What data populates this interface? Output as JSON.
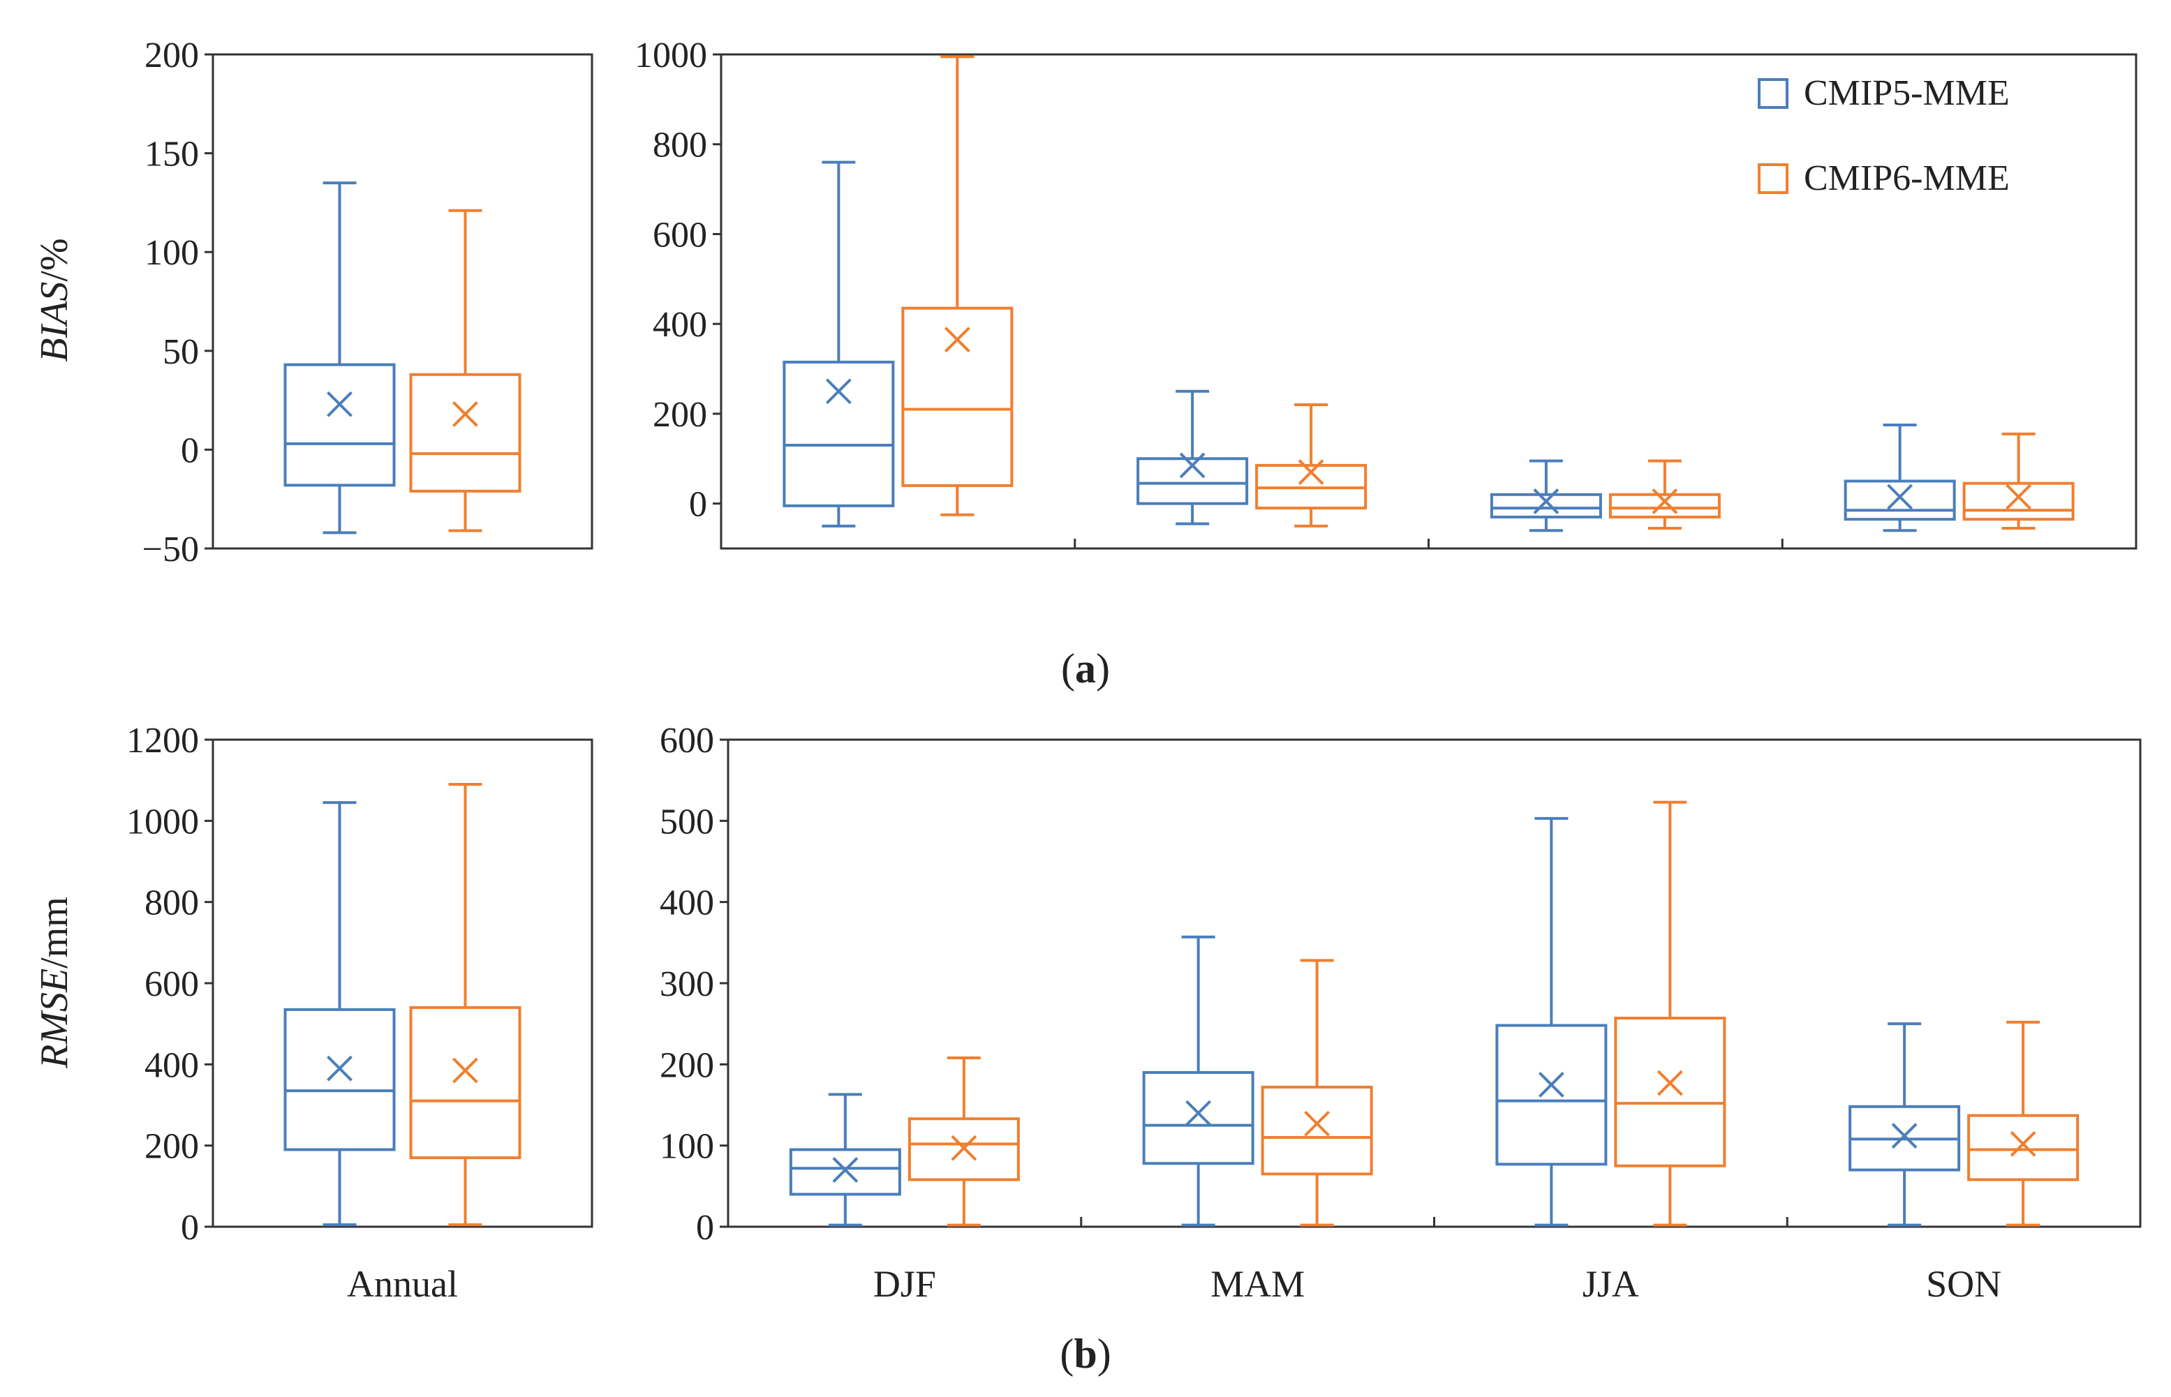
{
  "chart_data": [
    {
      "type": "box",
      "panel": "a",
      "subplot": "annual",
      "categories": [
        "Annual"
      ],
      "ylabel": {
        "italic": "BIAS",
        "plain": "/%"
      },
      "ylim": [
        -50,
        200
      ],
      "yticks": [
        -50,
        0,
        50,
        100,
        150,
        200
      ],
      "series": [
        {
          "name": "CMIP5-MME",
          "color": "#4a7ebb",
          "boxes": [
            {
              "whislo": -42,
              "q1": -18,
              "med": 3,
              "q3": 43,
              "whishi": 135,
              "mean": 23
            }
          ]
        },
        {
          "name": "CMIP6-MME",
          "color": "#f07f2f",
          "boxes": [
            {
              "whislo": -41,
              "q1": -21,
              "med": -2,
              "q3": 38,
              "whishi": 121,
              "mean": 18
            }
          ]
        }
      ]
    },
    {
      "type": "box",
      "panel": "a",
      "subplot": "seasonal",
      "categories": [
        "DJF",
        "MAM",
        "JJA",
        "SON"
      ],
      "ylim": [
        -100,
        1000
      ],
      "yticks": [
        0,
        200,
        400,
        600,
        800,
        1000
      ],
      "legend": "top-right",
      "series": [
        {
          "name": "CMIP5-MME",
          "color": "#4a7ebb",
          "boxes": [
            {
              "whislo": -50,
              "q1": -5,
              "med": 130,
              "q3": 315,
              "whishi": 760,
              "mean": 250
            },
            {
              "whislo": -45,
              "q1": 0,
              "med": 45,
              "q3": 100,
              "whishi": 250,
              "mean": 85
            },
            {
              "whislo": -60,
              "q1": -30,
              "med": -10,
              "q3": 20,
              "whishi": 95,
              "mean": 5
            },
            {
              "whislo": -60,
              "q1": -35,
              "med": -15,
              "q3": 50,
              "whishi": 175,
              "mean": 15
            }
          ]
        },
        {
          "name": "CMIP6-MME",
          "color": "#f07f2f",
          "boxes": [
            {
              "whislo": -25,
              "q1": 40,
              "med": 210,
              "q3": 435,
              "whishi": 995,
              "mean": 365
            },
            {
              "whislo": -50,
              "q1": -10,
              "med": 35,
              "q3": 85,
              "whishi": 220,
              "mean": 70
            },
            {
              "whislo": -55,
              "q1": -30,
              "med": -10,
              "q3": 20,
              "whishi": 95,
              "mean": 5
            },
            {
              "whislo": -55,
              "q1": -35,
              "med": -15,
              "q3": 45,
              "whishi": 155,
              "mean": 15
            }
          ]
        }
      ]
    },
    {
      "type": "box",
      "panel": "b",
      "subplot": "annual",
      "categories": [
        "Annual"
      ],
      "ylabel": {
        "italic": "RMSE",
        "plain": "/mm"
      },
      "ylim": [
        0,
        1200
      ],
      "yticks": [
        0,
        200,
        400,
        600,
        800,
        1000,
        1200
      ],
      "series": [
        {
          "name": "CMIP5-MME",
          "color": "#4a7ebb",
          "boxes": [
            {
              "whislo": 5,
              "q1": 190,
              "med": 335,
              "q3": 535,
              "whishi": 1045,
              "mean": 390
            }
          ]
        },
        {
          "name": "CMIP6-MME",
          "color": "#f07f2f",
          "boxes": [
            {
              "whislo": 5,
              "q1": 170,
              "med": 310,
              "q3": 540,
              "whishi": 1090,
              "mean": 385
            }
          ]
        }
      ]
    },
    {
      "type": "box",
      "panel": "b",
      "subplot": "seasonal",
      "categories": [
        "DJF",
        "MAM",
        "JJA",
        "SON"
      ],
      "ylim": [
        0,
        600
      ],
      "yticks": [
        0,
        100,
        200,
        300,
        400,
        500,
        600
      ],
      "series": [
        {
          "name": "CMIP5-MME",
          "color": "#4a7ebb",
          "boxes": [
            {
              "whislo": 2,
              "q1": 40,
              "med": 72,
              "q3": 95,
              "whishi": 163,
              "mean": 70
            },
            {
              "whislo": 2,
              "q1": 78,
              "med": 125,
              "q3": 190,
              "whishi": 357,
              "mean": 140
            },
            {
              "whislo": 2,
              "q1": 77,
              "med": 155,
              "q3": 248,
              "whishi": 503,
              "mean": 175
            },
            {
              "whislo": 2,
              "q1": 70,
              "med": 108,
              "q3": 148,
              "whishi": 250,
              "mean": 112
            }
          ]
        },
        {
          "name": "CMIP6-MME",
          "color": "#f07f2f",
          "boxes": [
            {
              "whislo": 2,
              "q1": 58,
              "med": 102,
              "q3": 133,
              "whishi": 208,
              "mean": 97
            },
            {
              "whislo": 2,
              "q1": 65,
              "med": 110,
              "q3": 172,
              "whishi": 328,
              "mean": 127
            },
            {
              "whislo": 2,
              "q1": 75,
              "med": 152,
              "q3": 257,
              "whishi": 523,
              "mean": 177
            },
            {
              "whislo": 2,
              "q1": 58,
              "med": 95,
              "q3": 137,
              "whishi": 252,
              "mean": 102
            }
          ]
        }
      ]
    }
  ],
  "panel_labels": {
    "a": {
      "open": "(",
      "letter": "a",
      "close": ")"
    },
    "b": {
      "open": "(",
      "letter": "b",
      "close": ")"
    }
  },
  "legend": {
    "items": [
      {
        "name": "CMIP5-MME",
        "color": "#4a7ebb"
      },
      {
        "name": "CMIP6-MME",
        "color": "#f07f2f"
      }
    ]
  }
}
